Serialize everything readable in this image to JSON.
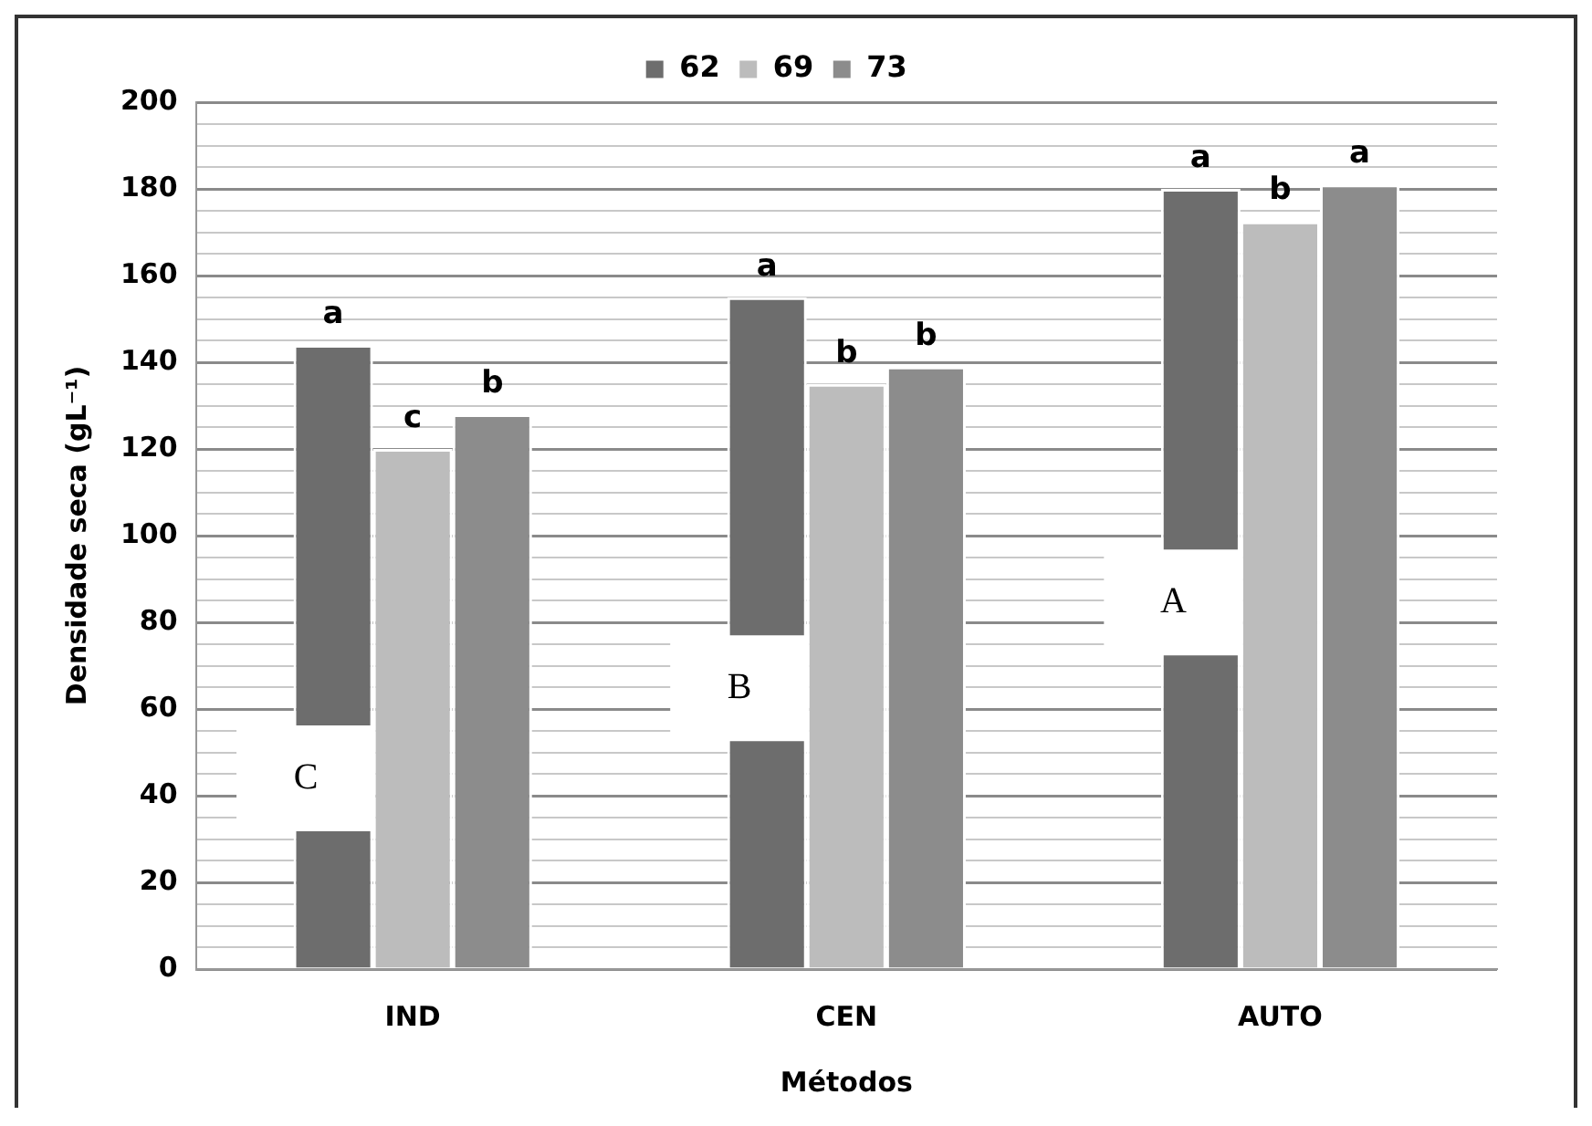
{
  "chart_data": {
    "type": "bar",
    "xlabel": "Métodos",
    "ylabel": "Densidade seca (gL⁻¹)",
    "categories": [
      "IND",
      "CEN",
      "AUTO"
    ],
    "series": [
      {
        "name": "62",
        "color": "#6d6d6d",
        "values": [
          144,
          155,
          180
        ]
      },
      {
        "name": "69",
        "color": "#bcbcbc",
        "values": [
          120,
          135,
          172.5
        ]
      },
      {
        "name": "73",
        "color": "#8c8c8c",
        "values": [
          128,
          139,
          181
        ]
      }
    ],
    "ylim": [
      0,
      200
    ],
    "yticks": [
      0,
      {
        "value": 5,
        "label": null
      },
      {
        "value": 10,
        "label": null
      },
      {
        "value": 15,
        "label": null
      },
      20,
      {
        "value": 25,
        "label": null
      },
      {
        "value": 30,
        "label": null
      },
      {
        "value": 35,
        "label": null
      },
      40,
      {
        "value": 45,
        "label": null
      },
      {
        "value": 50,
        "label": null
      },
      {
        "value": 55,
        "label": null
      },
      60,
      {
        "value": 65,
        "label": null
      },
      {
        "value": 70,
        "label": null
      },
      {
        "value": 75,
        "label": null
      },
      80,
      {
        "value": 85,
        "label": null
      },
      {
        "value": 90,
        "label": null
      },
      {
        "value": 95,
        "label": null
      },
      100,
      {
        "value": 105,
        "label": null
      },
      {
        "value": 110,
        "label": null
      },
      {
        "value": 115,
        "label": null
      },
      120,
      {
        "value": 125,
        "label": null
      },
      {
        "value": 130,
        "label": null
      },
      {
        "value": 135,
        "label": null
      },
      140,
      {
        "value": 145,
        "label": null
      },
      {
        "value": 150,
        "label": null
      },
      {
        "value": 155,
        "label": null
      },
      160,
      {
        "value": 165,
        "label": null
      },
      {
        "value": 170,
        "label": null
      },
      {
        "value": 175,
        "label": null
      },
      180,
      {
        "value": 185,
        "label": null
      },
      {
        "value": 190,
        "label": null
      },
      {
        "value": 195,
        "label": null
      },
      200
    ],
    "grid": "y",
    "legend": "top",
    "annotations": [
      "a",
      "c",
      "b",
      "a",
      "b",
      "b",
      "a",
      "b",
      "a",
      "C",
      "B",
      "A"
    ]
  }
}
